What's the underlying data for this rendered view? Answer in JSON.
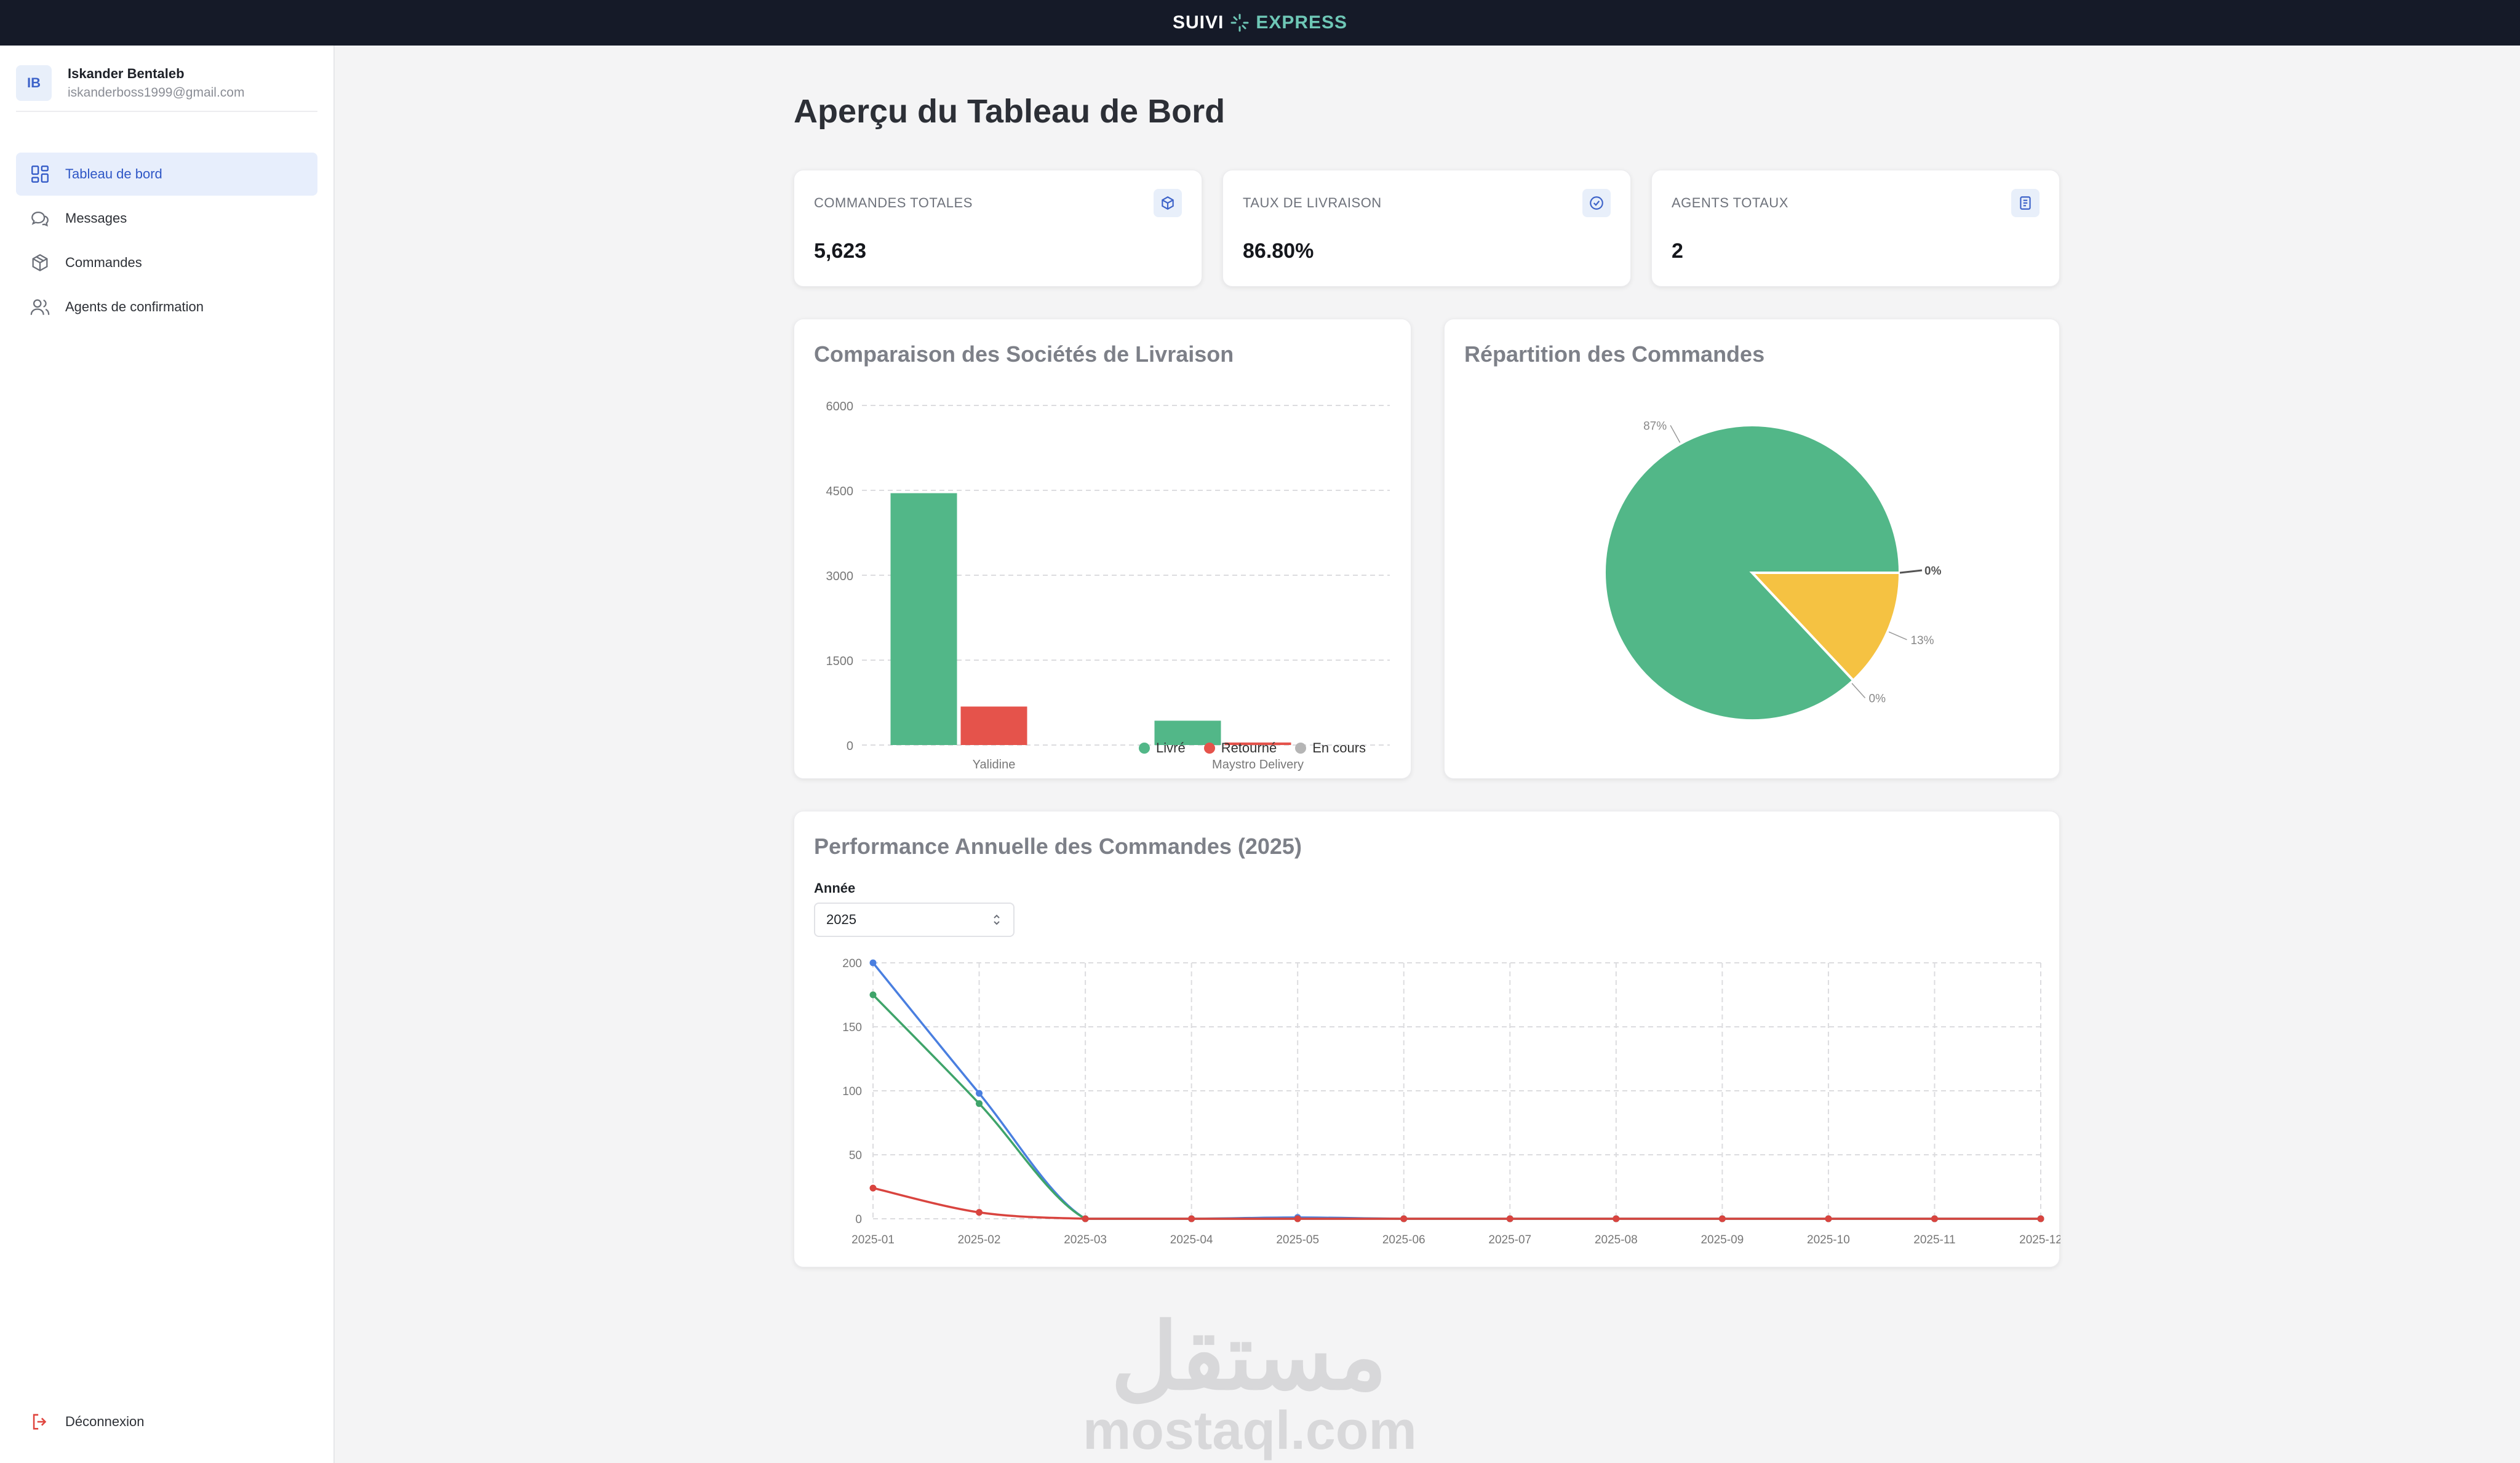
{
  "header": {
    "logo_part1": "SUIVI",
    "logo_part2": "EXPRESS",
    "colors": {
      "bar": "#151a28",
      "accent": "#6ec7b6"
    }
  },
  "user": {
    "initials": "IB",
    "name": "Iskander Bentaleb",
    "email": "iskanderboss1999@gmail.com"
  },
  "sidebar": {
    "items": [
      {
        "label": "Tableau de bord",
        "icon": "dashboard-grid-icon",
        "active": true
      },
      {
        "label": "Messages",
        "icon": "chat-bubbles-icon",
        "active": false
      },
      {
        "label": "Commandes",
        "icon": "package-box-icon",
        "active": false
      },
      {
        "label": "Agents de confirmation",
        "icon": "users-icon",
        "active": false
      }
    ],
    "logout_label": "Déconnexion"
  },
  "page": {
    "title": "Aperçu du Tableau de Bord"
  },
  "stats": [
    {
      "label": "COMMANDES TOTALES",
      "value": "5,623",
      "icon": "box-icon"
    },
    {
      "label": "TAUX DE LIVRAISON",
      "value": "86.80%",
      "icon": "check-circle-icon"
    },
    {
      "label": "AGENTS TOTAUX",
      "value": "2",
      "icon": "document-icon"
    }
  ],
  "bar_card": {
    "title": "Comparaison des Sociétés de Livraison"
  },
  "pie_card": {
    "title": "Répartition des Commandes"
  },
  "line_card": {
    "title": "Performance Annuelle des Commandes (2025)",
    "year_label": "Année",
    "year_value": "2025"
  },
  "watermark": {
    "arabic": "مستقل",
    "latin": "mostaql.com"
  },
  "chart_data": [
    {
      "type": "bar",
      "categories": [
        "Yalidine",
        "Maystro Delivery"
      ],
      "series": [
        {
          "name": "Livré",
          "color": "#52b788",
          "values": [
            4450,
            430
          ]
        },
        {
          "name": "Retourné",
          "color": "#e5534b",
          "values": [
            680,
            45
          ]
        },
        {
          "name": "En cours",
          "color": "#b5b5b5",
          "values": [
            0,
            0
          ]
        }
      ],
      "ylim": [
        0,
        6000
      ],
      "yticks": [
        0,
        1500,
        3000,
        4500,
        6000
      ],
      "grid": true,
      "legend": "bottom-right"
    },
    {
      "type": "pie",
      "slices": [
        {
          "label": "87%",
          "value": 87,
          "color": "#52b788"
        },
        {
          "label": "13%",
          "value": 13,
          "color": "#f5c242"
        },
        {
          "label": "0%",
          "value": 0,
          "color": "#e5534b"
        },
        {
          "label": "0%",
          "value": 0,
          "color": "#8a8d95"
        }
      ]
    },
    {
      "type": "line",
      "x": [
        "2025-01",
        "2025-02",
        "2025-03",
        "2025-04",
        "2025-05",
        "2025-06",
        "2025-07",
        "2025-08",
        "2025-09",
        "2025-10",
        "2025-11",
        "2025-12"
      ],
      "series": [
        {
          "color": "#4a7fe0",
          "values": [
            200,
            98,
            0,
            0,
            1,
            0,
            0,
            0,
            0,
            0,
            0,
            0
          ]
        },
        {
          "color": "#3fa46a",
          "values": [
            175,
            90,
            0,
            0,
            0,
            0,
            0,
            0,
            0,
            0,
            0,
            0
          ]
        },
        {
          "color": "#d9443f",
          "values": [
            24,
            5,
            0,
            0,
            0,
            0,
            0,
            0,
            0,
            0,
            0,
            0
          ]
        }
      ],
      "ylim": [
        0,
        200
      ],
      "yticks": [
        0,
        50,
        100,
        150,
        200
      ],
      "grid": true
    }
  ]
}
